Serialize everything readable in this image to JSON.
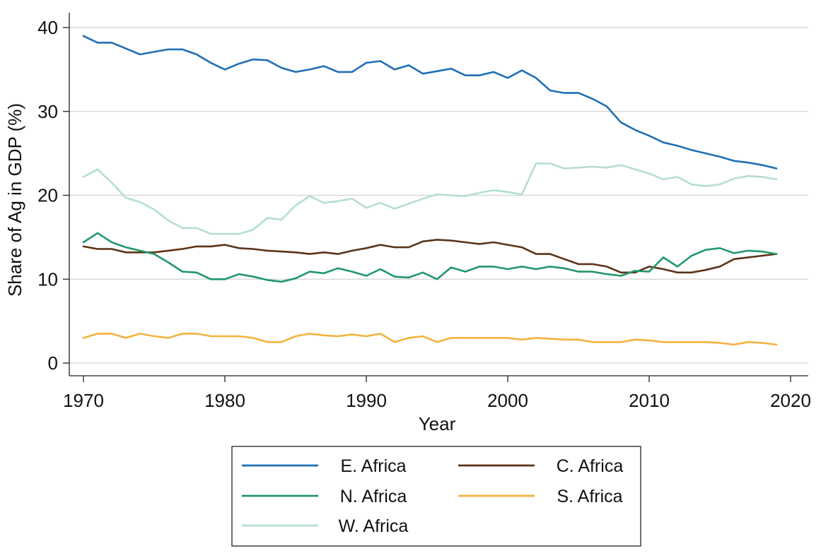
{
  "chart_data": {
    "type": "line",
    "title": "",
    "xlabel": "Year",
    "ylabel": "Share of Ag in GDP (%)",
    "xlim": [
      1970,
      2020
    ],
    "ylim": [
      0,
      42
    ],
    "xticks": [
      1970,
      1980,
      1990,
      2000,
      2010,
      2020
    ],
    "yticks": [
      0,
      10,
      20,
      30,
      40
    ],
    "grid": "horizontal",
    "legend_position": "bottom",
    "x": [
      1970,
      1971,
      1972,
      1973,
      1974,
      1975,
      1976,
      1977,
      1978,
      1979,
      1980,
      1981,
      1982,
      1983,
      1984,
      1985,
      1986,
      1987,
      1988,
      1989,
      1990,
      1991,
      1992,
      1993,
      1994,
      1995,
      1996,
      1997,
      1998,
      1999,
      2000,
      2001,
      2002,
      2003,
      2004,
      2005,
      2006,
      2007,
      2008,
      2009,
      2010,
      2011,
      2012,
      2013,
      2014,
      2015,
      2016,
      2017,
      2018,
      2019
    ],
    "series": [
      {
        "name": "E. Africa",
        "color": "#1f6fb4",
        "values": [
          39.0,
          38.2,
          38.2,
          37.5,
          36.8,
          37.1,
          37.4,
          37.4,
          36.8,
          35.8,
          35.0,
          35.7,
          36.2,
          36.1,
          35.2,
          34.7,
          35.0,
          35.4,
          34.7,
          34.7,
          35.8,
          36.0,
          35.0,
          35.5,
          34.5,
          34.8,
          35.1,
          34.3,
          34.3,
          34.7,
          34.0,
          34.9,
          34.0,
          32.5,
          32.2,
          32.2,
          31.5,
          30.6,
          28.7,
          27.8,
          27.1,
          26.3,
          25.9,
          25.4,
          25.0,
          24.6,
          24.1,
          23.9,
          23.6,
          23.2
        ]
      },
      {
        "name": "C. Africa",
        "color": "#5c3417",
        "values": [
          13.9,
          13.6,
          13.6,
          13.2,
          13.2,
          13.2,
          13.4,
          13.6,
          13.9,
          13.9,
          14.1,
          13.7,
          13.6,
          13.4,
          13.3,
          13.2,
          13.0,
          13.2,
          13.0,
          13.4,
          13.7,
          14.1,
          13.8,
          13.8,
          14.5,
          14.7,
          14.6,
          14.4,
          14.2,
          14.4,
          14.1,
          13.8,
          13.0,
          13.0,
          12.4,
          11.8,
          11.8,
          11.5,
          10.8,
          10.8,
          11.5,
          11.2,
          10.8,
          10.8,
          11.1,
          11.5,
          12.4,
          12.6,
          12.8,
          13.0
        ]
      },
      {
        "name": "N. Africa",
        "color": "#22976a",
        "values": [
          14.4,
          15.5,
          14.4,
          13.8,
          13.4,
          13.0,
          12.0,
          10.9,
          10.8,
          10.0,
          10.0,
          10.6,
          10.3,
          9.9,
          9.7,
          10.1,
          10.9,
          10.7,
          11.3,
          10.9,
          10.4,
          11.2,
          10.3,
          10.2,
          10.8,
          10.0,
          11.4,
          10.9,
          11.5,
          11.5,
          11.2,
          11.5,
          11.2,
          11.5,
          11.3,
          10.9,
          10.9,
          10.6,
          10.4,
          11.0,
          10.9,
          12.6,
          11.5,
          12.8,
          13.5,
          13.7,
          13.1,
          13.4,
          13.3,
          13.0
        ]
      },
      {
        "name": "S. Africa",
        "color": "#f2b33d",
        "values": [
          3.0,
          3.5,
          3.5,
          3.0,
          3.5,
          3.2,
          3.0,
          3.5,
          3.5,
          3.2,
          3.2,
          3.2,
          3.0,
          2.5,
          2.5,
          3.2,
          3.5,
          3.3,
          3.2,
          3.4,
          3.2,
          3.5,
          2.5,
          3.0,
          3.2,
          2.5,
          3.0,
          3.0,
          3.0,
          3.0,
          3.0,
          2.8,
          3.0,
          2.9,
          2.8,
          2.8,
          2.5,
          2.5,
          2.5,
          2.8,
          2.7,
          2.5,
          2.5,
          2.5,
          2.5,
          2.4,
          2.2,
          2.5,
          2.4,
          2.2
        ]
      },
      {
        "name": "W. Africa",
        "color": "#b4dfd0",
        "values": [
          22.2,
          23.1,
          21.5,
          19.7,
          19.2,
          18.3,
          17.0,
          16.1,
          16.1,
          15.4,
          15.4,
          15.4,
          15.9,
          17.3,
          17.1,
          18.8,
          19.9,
          19.1,
          19.3,
          19.6,
          18.5,
          19.1,
          18.4,
          19.0,
          19.6,
          20.1,
          20.0,
          19.9,
          20.3,
          20.6,
          20.4,
          20.1,
          23.8,
          23.8,
          23.2,
          23.3,
          23.4,
          23.3,
          23.6,
          23.1,
          22.6,
          21.9,
          22.2,
          21.3,
          21.1,
          21.3,
          22.0,
          22.3,
          22.2,
          21.9
        ]
      }
    ]
  }
}
